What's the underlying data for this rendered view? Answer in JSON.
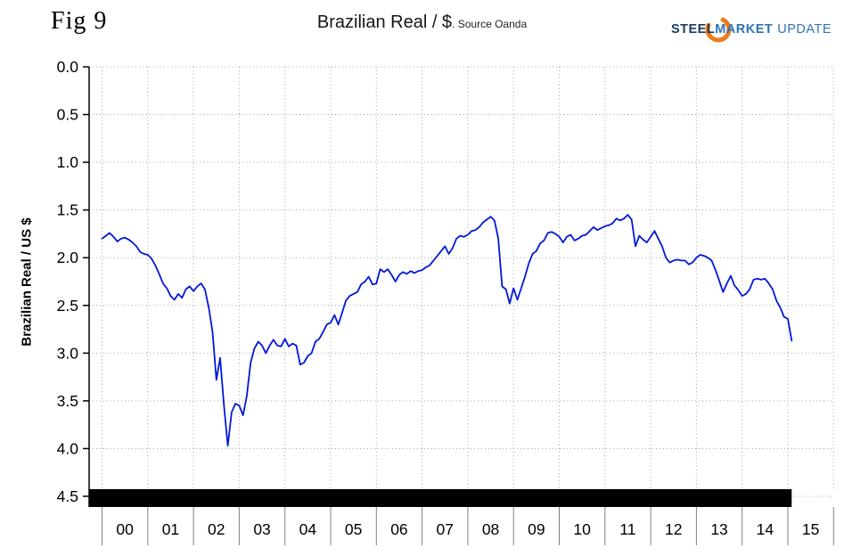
{
  "figure_label": "Fig 9",
  "header": {
    "title": "Brazilian Real / $",
    "source": ". Source Oanda"
  },
  "logo": {
    "steel": "STEEL",
    "market": "MARKET",
    "update": "UPDATE",
    "navy": "#1c3c5e",
    "blue": "#2e74b5",
    "orange": "#ee7b1d"
  },
  "chart_data": {
    "type": "line",
    "title": "Brazilian Real / $",
    "source": "Oanda",
    "ylabel": "Brazilian Real / US $",
    "grid": "dotted",
    "y_axis": {
      "min": 0.0,
      "max": 4.5,
      "step": 0.5,
      "inverted": true,
      "tick_labels": [
        "0.0",
        "0.5",
        "1.0",
        "1.5",
        "2.0",
        "2.5",
        "3.0",
        "3.5",
        "4.0",
        "4.5"
      ]
    },
    "x_axis": {
      "start_year": 2000,
      "end_year": 2016,
      "frequency": "monthly",
      "tick_labels": [
        "00",
        "01",
        "02",
        "03",
        "04",
        "05",
        "06",
        "07",
        "08",
        "09",
        "10",
        "11",
        "12",
        "13",
        "14",
        "15"
      ]
    },
    "series": [
      {
        "name": "Brazilian Real per US Dollar",
        "color": "#0018d8",
        "start": "2000-01",
        "values": [
          1.8,
          1.77,
          1.74,
          1.78,
          1.83,
          1.8,
          1.79,
          1.81,
          1.84,
          1.88,
          1.94,
          1.96,
          1.97,
          2.01,
          2.08,
          2.17,
          2.27,
          2.32,
          2.4,
          2.44,
          2.38,
          2.42,
          2.33,
          2.3,
          2.35,
          2.3,
          2.27,
          2.33,
          2.52,
          2.78,
          3.28,
          3.05,
          3.55,
          3.97,
          3.62,
          3.53,
          3.55,
          3.65,
          3.45,
          3.1,
          2.95,
          2.88,
          2.92,
          3.0,
          2.92,
          2.86,
          2.92,
          2.93,
          2.85,
          2.93,
          2.9,
          2.92,
          3.12,
          3.1,
          3.03,
          3.0,
          2.88,
          2.85,
          2.78,
          2.7,
          2.68,
          2.6,
          2.7,
          2.58,
          2.45,
          2.4,
          2.38,
          2.36,
          2.28,
          2.25,
          2.2,
          2.28,
          2.27,
          2.12,
          2.15,
          2.12,
          2.18,
          2.25,
          2.18,
          2.15,
          2.17,
          2.14,
          2.16,
          2.14,
          2.13,
          2.1,
          2.08,
          2.03,
          1.98,
          1.93,
          1.88,
          1.96,
          1.9,
          1.8,
          1.77,
          1.78,
          1.76,
          1.72,
          1.71,
          1.68,
          1.63,
          1.6,
          1.57,
          1.61,
          1.8,
          2.3,
          2.33,
          2.48,
          2.32,
          2.44,
          2.32,
          2.2,
          2.06,
          1.96,
          1.93,
          1.85,
          1.82,
          1.74,
          1.73,
          1.75,
          1.78,
          1.84,
          1.78,
          1.76,
          1.82,
          1.8,
          1.77,
          1.76,
          1.72,
          1.68,
          1.71,
          1.69,
          1.67,
          1.66,
          1.64,
          1.59,
          1.61,
          1.59,
          1.55,
          1.6,
          1.88,
          1.77,
          1.81,
          1.84,
          1.78,
          1.72,
          1.8,
          1.88,
          2.0,
          2.05,
          2.03,
          2.02,
          2.03,
          2.03,
          2.07,
          2.05,
          2.0,
          1.97,
          1.98,
          2.0,
          2.03,
          2.13,
          2.24,
          2.36,
          2.27,
          2.19,
          2.29,
          2.34,
          2.4,
          2.38,
          2.33,
          2.23,
          2.22,
          2.23,
          2.22,
          2.27,
          2.33,
          2.45,
          2.52,
          2.62,
          2.64,
          2.87
        ]
      }
    ]
  }
}
